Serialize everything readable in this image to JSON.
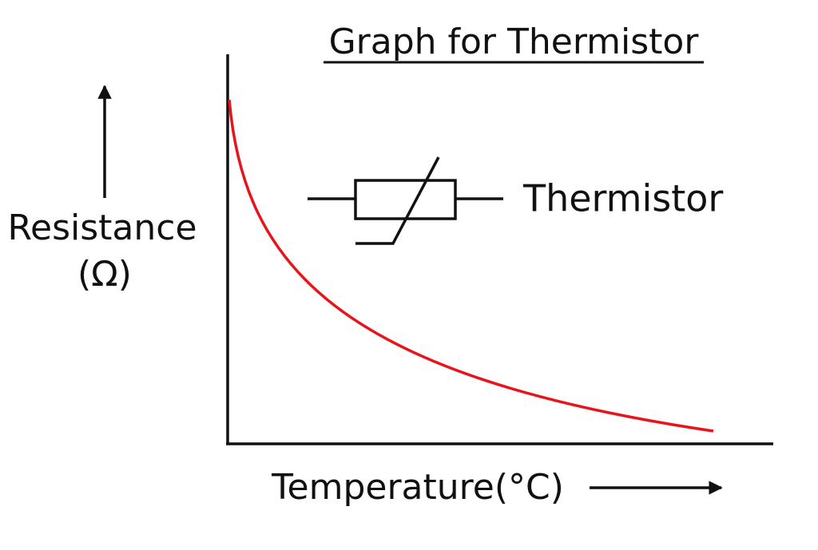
{
  "title": "Graph for Thermistor",
  "y_axis": {
    "label": "Resistance",
    "unit": "(Ω)"
  },
  "x_axis": {
    "label": "Temperature(°C)"
  },
  "symbol": {
    "label": "Thermistor"
  }
}
